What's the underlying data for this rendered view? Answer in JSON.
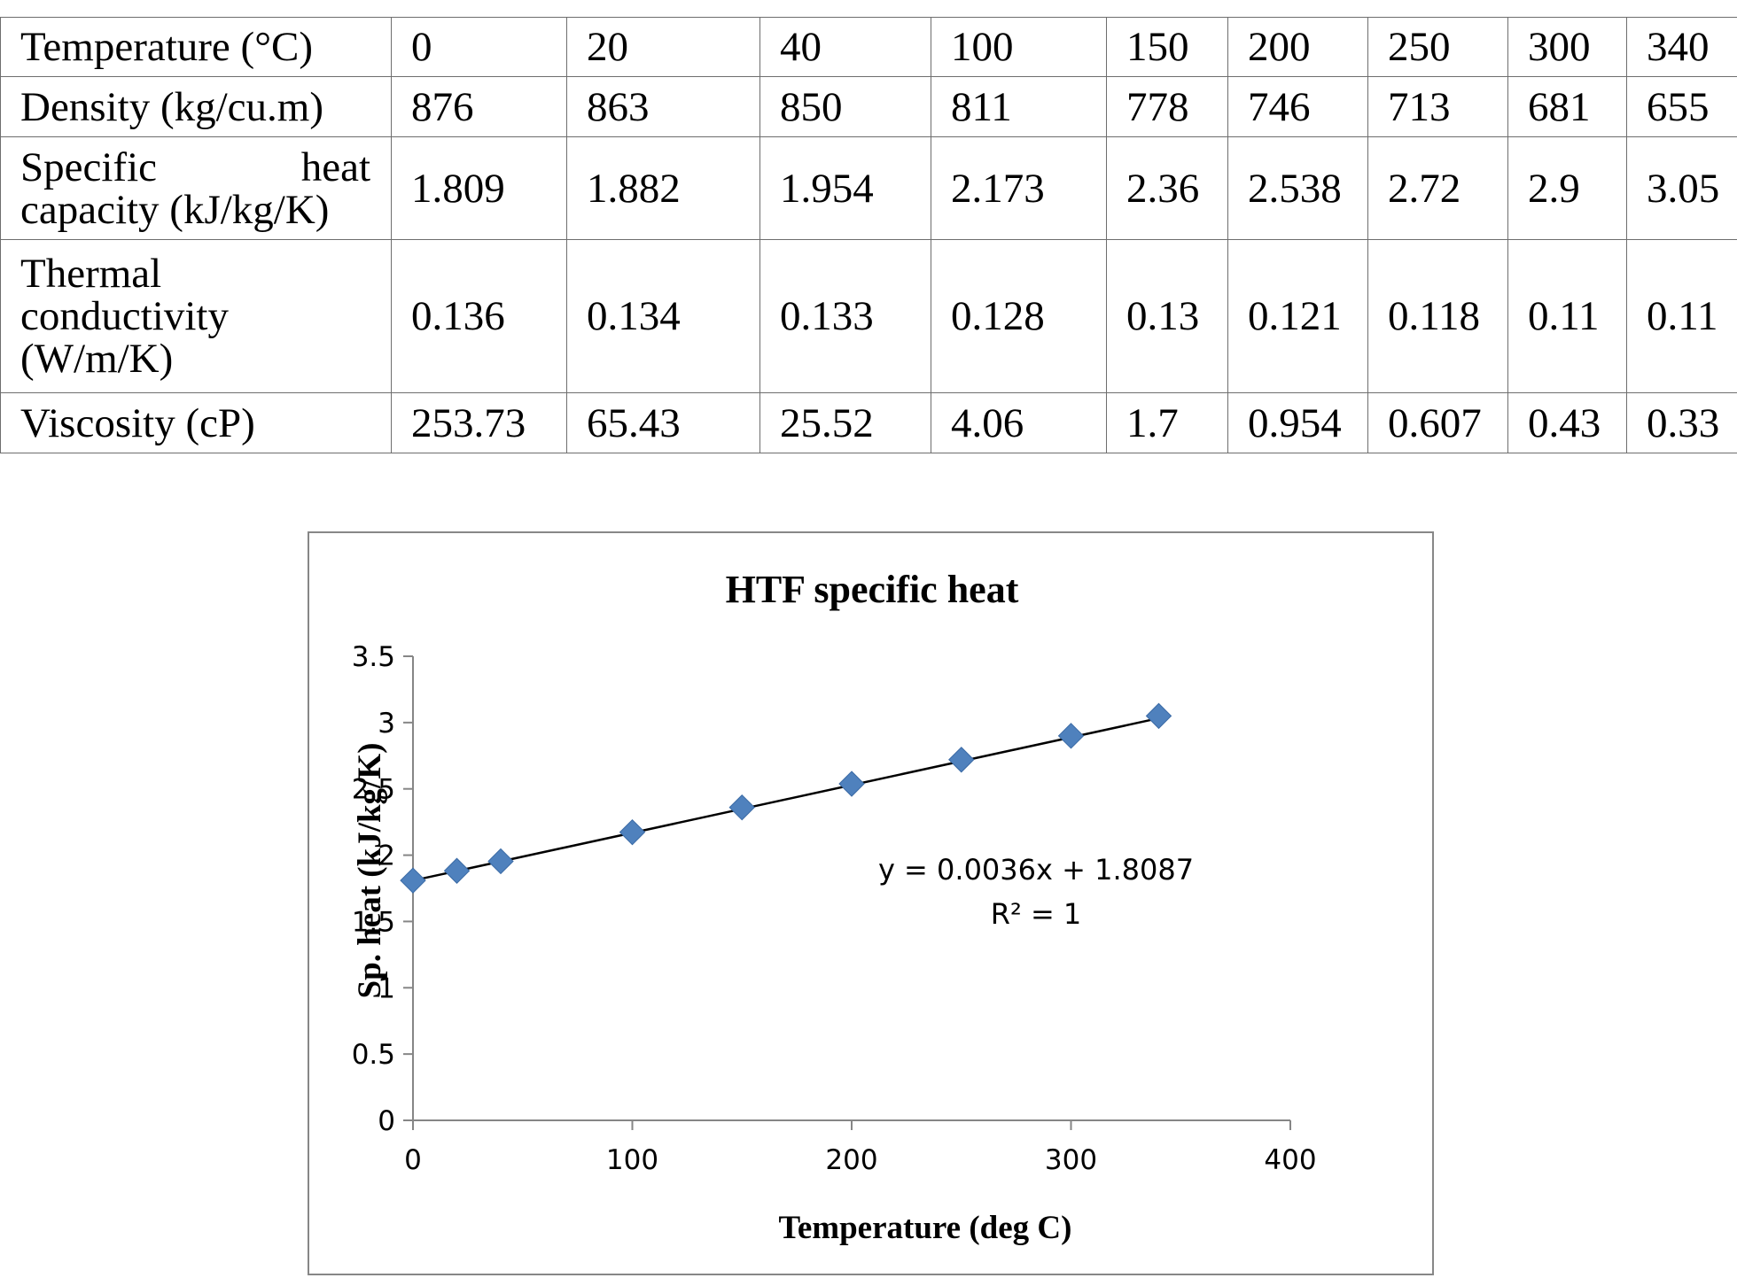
{
  "table": {
    "rows": [
      {
        "label": "Temperature (°C)",
        "values": [
          "0",
          "20",
          "40",
          "100",
          "150",
          "200",
          "250",
          "300",
          "340"
        ]
      },
      {
        "label": "Density (kg/cu.m)",
        "values": [
          "876",
          "863",
          "850",
          "811",
          "778",
          "746",
          "713",
          "681",
          "655"
        ]
      },
      {
        "label_lines": [
          "Specific",
          "heat",
          "capacity (kJ/kg/K)"
        ],
        "values": [
          "1.809",
          "1.882",
          "1.954",
          "2.173",
          "2.36",
          "2.538",
          "2.72",
          "2.9",
          "3.05"
        ]
      },
      {
        "label_lines": [
          "Thermal",
          "conductivity",
          "(W/m/K)"
        ],
        "values": [
          "0.136",
          "0.134",
          "0.133",
          "0.128",
          "0.13",
          "0.121",
          "0.118",
          "0.11",
          "0.11"
        ]
      },
      {
        "label": "Viscosity (cP)",
        "values": [
          "253.73",
          "65.43",
          "25.52",
          "4.06",
          "1.7",
          "0.954",
          "0.607",
          "0.43",
          "0.33"
        ]
      }
    ]
  },
  "chart_data": {
    "type": "scatter",
    "title": "HTF specific heat",
    "xlabel": "Temperature (deg C)",
    "ylabel": "Sp. heat (kJ/kg/K)",
    "xlim": [
      0,
      400
    ],
    "ylim": [
      0,
      3.5
    ],
    "x_ticks": [
      "0",
      "100",
      "200",
      "300",
      "400"
    ],
    "y_ticks": [
      "0",
      "0.5",
      "1",
      "1.5",
      "2",
      "2.5",
      "3",
      "3.5"
    ],
    "grid": false,
    "marker": "diamond",
    "marker_color": "#4f81bd",
    "x": [
      0,
      20,
      40,
      100,
      150,
      200,
      250,
      300,
      340
    ],
    "y": [
      1.809,
      1.882,
      1.954,
      2.173,
      2.36,
      2.538,
      2.72,
      2.9,
      3.05
    ],
    "trendline": {
      "type": "linear",
      "slope": 0.0036,
      "intercept": 1.8087,
      "color": "#000000",
      "equation": "y = 0.0036x + 1.8087",
      "r_squared": "R² = 1"
    }
  }
}
